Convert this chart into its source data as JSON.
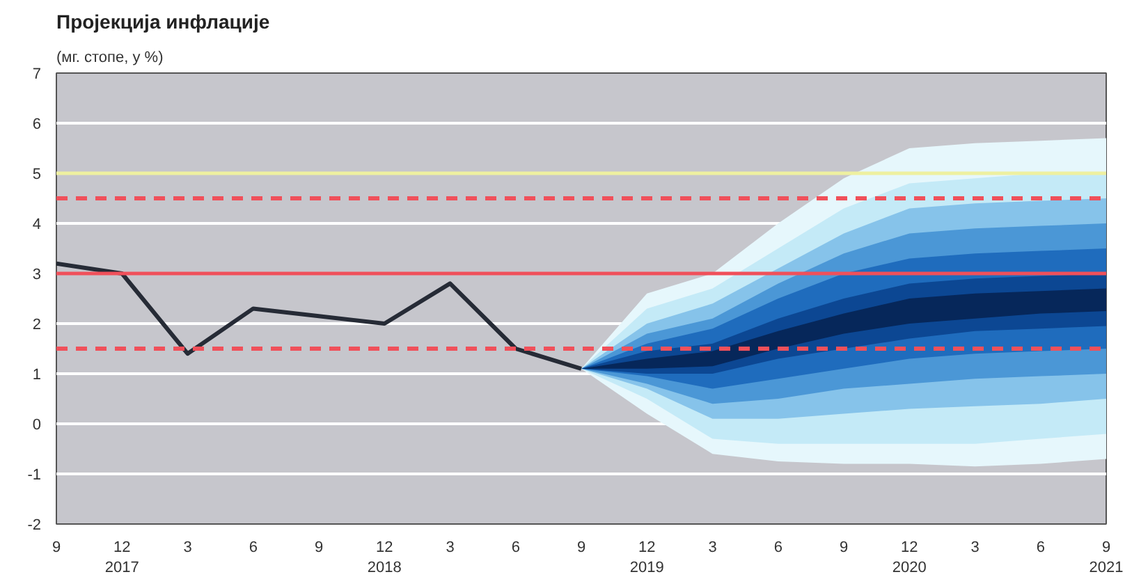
{
  "chart_data": {
    "type": "line",
    "title": "Пројекција инфлације",
    "subtitle": "(мг. стопе, у %)",
    "categories": [
      "9",
      "12\n2017",
      "3",
      "6",
      "9",
      "12\n2018",
      "3",
      "6",
      "9",
      "12\n2019",
      "3",
      "6",
      "9",
      "12\n2020",
      "3",
      "6",
      "9\n2021"
    ],
    "series": [
      {
        "color": "#e6f7fc",
        "values": [
          null,
          null,
          null,
          null,
          null,
          null,
          null,
          null,
          null,
          null,
          null,
          null,
          null,
          null,
          null,
          null,
          null
        ],
        "upper": [
          null,
          null,
          null,
          null,
          null,
          null,
          null,
          null,
          1.1,
          2.6,
          3.0,
          4.0,
          4.9,
          5.5,
          5.6,
          5.65,
          5.7
        ],
        "lower": [
          null,
          null,
          null,
          null,
          null,
          null,
          null,
          null,
          1.1,
          0.2,
          -0.6,
          -0.75,
          -0.8,
          -0.8,
          -0.85,
          -0.8,
          -0.7
        ]
      },
      {
        "color": "#c4eaf7",
        "values": [
          null,
          null,
          null,
          null,
          null,
          null,
          null,
          null,
          null,
          null,
          null,
          null,
          null,
          null,
          null,
          null,
          null
        ],
        "upper": [
          null,
          null,
          null,
          null,
          null,
          null,
          null,
          null,
          1.1,
          2.3,
          2.7,
          3.5,
          4.3,
          4.8,
          4.9,
          5.0,
          5.0
        ],
        "lower": [
          null,
          null,
          null,
          null,
          null,
          null,
          null,
          null,
          1.1,
          0.5,
          -0.3,
          -0.4,
          -0.4,
          -0.4,
          -0.4,
          -0.3,
          -0.2
        ]
      },
      {
        "color": "#86c3ea",
        "values": [
          null,
          null,
          null,
          null,
          null,
          null,
          null,
          null,
          null,
          null,
          null,
          null,
          null,
          null,
          null,
          null,
          null
        ],
        "upper": [
          null,
          null,
          null,
          null,
          null,
          null,
          null,
          null,
          1.1,
          2.0,
          2.4,
          3.1,
          3.8,
          4.3,
          4.4,
          4.45,
          4.5
        ],
        "lower": [
          null,
          null,
          null,
          null,
          null,
          null,
          null,
          null,
          1.1,
          0.7,
          0.1,
          0.1,
          0.2,
          0.3,
          0.35,
          0.4,
          0.5
        ]
      },
      {
        "color": "#4b97d6",
        "values": [
          null,
          null,
          null,
          null,
          null,
          null,
          null,
          null,
          null,
          null,
          null,
          null,
          null,
          null,
          null,
          null,
          null
        ],
        "upper": [
          null,
          null,
          null,
          null,
          null,
          null,
          null,
          null,
          1.1,
          1.8,
          2.1,
          2.8,
          3.4,
          3.8,
          3.9,
          3.95,
          4.0
        ],
        "lower": [
          null,
          null,
          null,
          null,
          null,
          null,
          null,
          null,
          1.1,
          0.8,
          0.4,
          0.5,
          0.7,
          0.8,
          0.9,
          0.95,
          1.0
        ]
      },
      {
        "color": "#1f6cbd",
        "values": [
          null,
          null,
          null,
          null,
          null,
          null,
          null,
          null,
          null,
          null,
          null,
          null,
          null,
          null,
          null,
          null,
          null
        ],
        "upper": [
          null,
          null,
          null,
          null,
          null,
          null,
          null,
          null,
          1.1,
          1.6,
          1.9,
          2.5,
          3.0,
          3.3,
          3.4,
          3.45,
          3.5
        ],
        "lower": [
          null,
          null,
          null,
          null,
          null,
          null,
          null,
          null,
          1.1,
          0.95,
          0.7,
          0.9,
          1.1,
          1.3,
          1.4,
          1.45,
          1.5
        ]
      },
      {
        "color": "#0c4793",
        "values": [
          null,
          null,
          null,
          null,
          null,
          null,
          null,
          null,
          null,
          null,
          null,
          null,
          null,
          null,
          null,
          null,
          null
        ],
        "upper": [
          null,
          null,
          null,
          null,
          null,
          null,
          null,
          null,
          1.1,
          1.45,
          1.6,
          2.1,
          2.5,
          2.8,
          2.9,
          2.95,
          3.0
        ],
        "lower": [
          null,
          null,
          null,
          null,
          null,
          null,
          null,
          null,
          1.1,
          1.0,
          1.0,
          1.3,
          1.5,
          1.7,
          1.85,
          1.9,
          1.95
        ]
      },
      {
        "color": "#06275a",
        "values": [
          null,
          null,
          null,
          null,
          null,
          null,
          null,
          null,
          null,
          null,
          null,
          null,
          null,
          null,
          null,
          null,
          null
        ],
        "upper": [
          null,
          null,
          null,
          null,
          null,
          null,
          null,
          null,
          1.1,
          1.3,
          1.45,
          1.85,
          2.2,
          2.5,
          2.6,
          2.65,
          2.7
        ],
        "lower": [
          null,
          null,
          null,
          null,
          null,
          null,
          null,
          null,
          1.1,
          1.1,
          1.15,
          1.5,
          1.8,
          2.0,
          2.1,
          2.2,
          2.25
        ]
      },
      {
        "color": "#262b36",
        "values": [
          3.2,
          3.0,
          1.4,
          2.3,
          2.15,
          2.0,
          2.8,
          1.5,
          1.1,
          null,
          null,
          null,
          null,
          null,
          null,
          null,
          null
        ]
      }
    ],
    "ylim": [
      -2,
      7
    ],
    "yticks": [
      -2,
      -1,
      0,
      1,
      2,
      3,
      4,
      5,
      6,
      7
    ],
    "grid": "y",
    "marker": "none",
    "line_style": "solid",
    "ref_lines": [
      {
        "axis": "y",
        "value": 3,
        "color": "#f0505a",
        "line_style": "solid"
      },
      {
        "axis": "y",
        "value": 4.5,
        "color": "#f0505a",
        "line_style": "dashed"
      },
      {
        "axis": "y",
        "value": 1.5,
        "color": "#f0505a",
        "line_style": "dashed"
      },
      {
        "axis": "y",
        "value": 5,
        "color": "#eef0a0",
        "line_style": "solid"
      }
    ]
  }
}
